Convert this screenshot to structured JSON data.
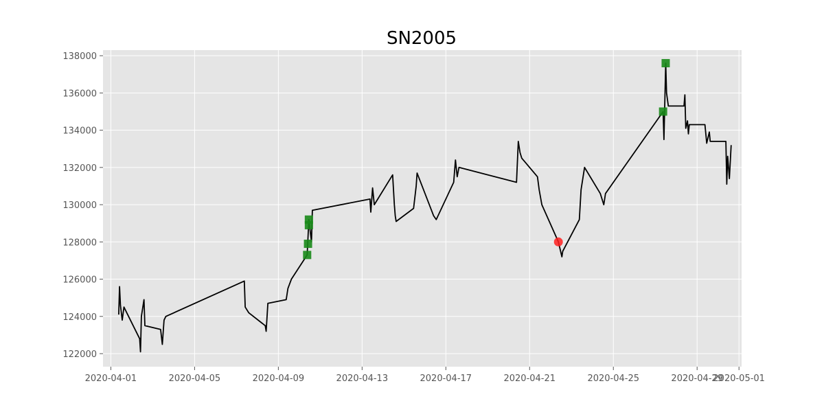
{
  "chart_data": {
    "type": "line",
    "title": "SN2005",
    "xlabel": "",
    "ylabel": "",
    "x_range": [
      "2020-03-31T15:00",
      "2020-05-01T03:00"
    ],
    "ylim": [
      121300,
      138300
    ],
    "grid": true,
    "legend": "none",
    "colors": {
      "background": "#e5e5e5",
      "grid": "#ffffff",
      "line": "#000000",
      "square_marker": "#1a8a1a",
      "circle_marker": "#ff2020"
    },
    "x_ticks": [
      "2020-04-01",
      "2020-04-05",
      "2020-04-09",
      "2020-04-13",
      "2020-04-17",
      "2020-04-21",
      "2020-04-25",
      "2020-04-29",
      "2020-05-01"
    ],
    "y_ticks": [
      122000,
      124000,
      126000,
      128000,
      130000,
      132000,
      134000,
      136000,
      138000
    ],
    "series": [
      {
        "points": [
          [
            "2020-04-01T09:00",
            124100
          ],
          [
            "2020-04-01T10:00",
            125600
          ],
          [
            "2020-04-01T11:00",
            124600
          ],
          [
            "2020-04-01T13:00",
            123800
          ],
          [
            "2020-04-01T15:00",
            124500
          ],
          [
            "2020-04-02T09:00",
            122800
          ],
          [
            "2020-04-02T10:00",
            122100
          ],
          [
            "2020-04-02T11:00",
            124000
          ],
          [
            "2020-04-02T14:00",
            124900
          ],
          [
            "2020-04-02T15:00",
            123500
          ],
          [
            "2020-04-03T09:00",
            123300
          ],
          [
            "2020-04-03T11:00",
            122500
          ],
          [
            "2020-04-03T13:00",
            123800
          ],
          [
            "2020-04-03T15:00",
            124000
          ],
          [
            "2020-04-07T09:00",
            125900
          ],
          [
            "2020-04-07T10:00",
            124500
          ],
          [
            "2020-04-07T14:00",
            124200
          ],
          [
            "2020-04-08T09:00",
            123500
          ],
          [
            "2020-04-08T10:00",
            123200
          ],
          [
            "2020-04-08T12:00",
            124700
          ],
          [
            "2020-04-09T09:00",
            124900
          ],
          [
            "2020-04-09T11:00",
            125500
          ],
          [
            "2020-04-09T15:00",
            126000
          ],
          [
            "2020-04-10T09:00",
            127300
          ],
          [
            "2020-04-10T11:00",
            129200
          ],
          [
            "2020-04-10T14:00",
            128000
          ],
          [
            "2020-04-10T15:00",
            129700
          ],
          [
            "2020-04-13T09:00",
            130300
          ],
          [
            "2020-04-13T10:00",
            129600
          ],
          [
            "2020-04-13T12:00",
            130900
          ],
          [
            "2020-04-13T14:00",
            130000
          ],
          [
            "2020-04-14T11:00",
            131600
          ],
          [
            "2020-04-14T13:00",
            130000
          ],
          [
            "2020-04-14T14:00",
            129400
          ],
          [
            "2020-04-14T15:00",
            129100
          ],
          [
            "2020-04-15T11:00",
            129800
          ],
          [
            "2020-04-15T14:00",
            131000
          ],
          [
            "2020-04-15T15:00",
            131700
          ],
          [
            "2020-04-16T10:00",
            129400
          ],
          [
            "2020-04-16T13:00",
            129200
          ],
          [
            "2020-04-17T09:00",
            131200
          ],
          [
            "2020-04-17T11:00",
            132400
          ],
          [
            "2020-04-17T13:00",
            131500
          ],
          [
            "2020-04-17T15:00",
            132000
          ],
          [
            "2020-04-20T09:00",
            131200
          ],
          [
            "2020-04-20T11:00",
            133400
          ],
          [
            "2020-04-20T13:00",
            132800
          ],
          [
            "2020-04-20T15:00",
            132500
          ],
          [
            "2020-04-21T09:00",
            131500
          ],
          [
            "2020-04-21T11:00",
            130800
          ],
          [
            "2020-04-21T14:00",
            130000
          ],
          [
            "2020-04-22T09:00",
            128000
          ],
          [
            "2020-04-22T13:00",
            127200
          ],
          [
            "2020-04-22T14:00",
            127500
          ],
          [
            "2020-04-23T09:00",
            129200
          ],
          [
            "2020-04-23T11:00",
            130800
          ],
          [
            "2020-04-23T15:00",
            132000
          ],
          [
            "2020-04-24T09:00",
            130600
          ],
          [
            "2020-04-24T13:00",
            130000
          ],
          [
            "2020-04-24T15:00",
            130600
          ],
          [
            "2020-04-27T09:00",
            135000
          ],
          [
            "2020-04-27T10:00",
            133500
          ],
          [
            "2020-04-27T12:00",
            137600
          ],
          [
            "2020-04-27T13:00",
            136000
          ],
          [
            "2020-04-27T15:00",
            135300
          ],
          [
            "2020-04-28T09:00",
            135300
          ],
          [
            "2020-04-28T10:00",
            135900
          ],
          [
            "2020-04-28T11:00",
            134100
          ],
          [
            "2020-04-28T13:00",
            134500
          ],
          [
            "2020-04-28T14:00",
            133800
          ],
          [
            "2020-04-28T15:00",
            134300
          ],
          [
            "2020-04-29T09:00",
            134300
          ],
          [
            "2020-04-29T11:00",
            133300
          ],
          [
            "2020-04-29T14:00",
            133900
          ],
          [
            "2020-04-29T15:00",
            133400
          ],
          [
            "2020-04-30T09:00",
            133400
          ],
          [
            "2020-04-30T10:00",
            131100
          ],
          [
            "2020-04-30T11:00",
            132600
          ],
          [
            "2020-04-30T13:00",
            131400
          ],
          [
            "2020-04-30T15:00",
            133200
          ]
        ]
      }
    ],
    "square_markers": [
      [
        "2020-04-10T09:00",
        127300
      ],
      [
        "2020-04-10T10:00",
        127900
      ],
      [
        "2020-04-10T11:00",
        128900
      ],
      [
        "2020-04-10T11:00",
        129200
      ],
      [
        "2020-04-27T09:00",
        135000
      ],
      [
        "2020-04-27T12:00",
        137600
      ]
    ],
    "circle_markers": [
      [
        "2020-04-22T09:00",
        128000
      ]
    ]
  }
}
